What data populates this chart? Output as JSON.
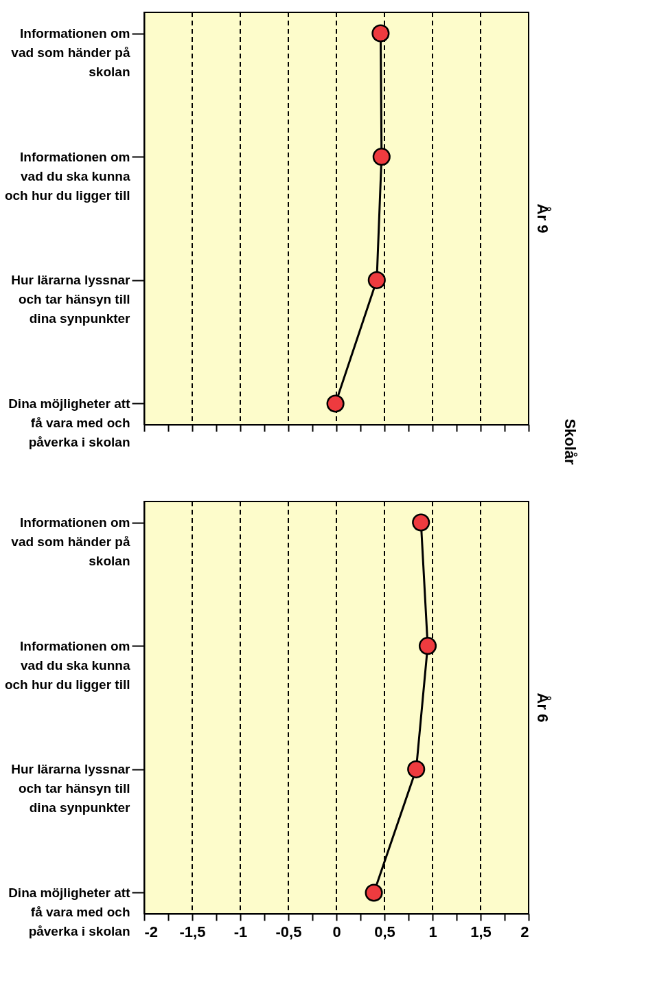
{
  "chart_data": [
    {
      "type": "line",
      "orientation": "horizontal",
      "y2label": "År 9",
      "annotations": [
        "Skolår"
      ],
      "categories": [
        "Informationen om\nvad som händer på\nskolan",
        "Informationen om\nvad du ska kunna\noch hur du ligger till",
        "Hur lärarna lyssnar\noch tar hänsyn till\ndina synpunkter",
        "Dina möjligheter att\nfå vara med och\npåverka i skolan"
      ],
      "series": [
        {
          "color": "#ee3b3f",
          "values": [
            0.46,
            0.47,
            0.42,
            -0.01
          ]
        }
      ],
      "xlim": [
        -2,
        2
      ],
      "xticks": [
        -2,
        {
          "value": -1.75,
          "label": null
        },
        -1.5,
        {
          "value": -1.25,
          "label": null
        },
        -1,
        {
          "value": -0.75,
          "label": null
        },
        -0.5,
        {
          "value": -0.25,
          "label": null
        },
        0,
        {
          "value": 0.25,
          "label": null
        },
        0.5,
        {
          "value": 0.75,
          "label": null
        },
        1,
        {
          "value": 1.25,
          "label": null
        },
        1.5,
        {
          "value": 1.75,
          "label": null
        },
        2
      ],
      "grid": "x",
      "line_style": "solid",
      "marker": "circle",
      "tick_labels": "y"
    },
    {
      "type": "line",
      "orientation": "horizontal",
      "y2label": "År 6",
      "categories": [
        "Informationen om\nvad som händer på\nskolan",
        "Informationen om\nvad du ska kunna\noch hur du ligger till",
        "Hur lärarna lyssnar\noch tar hänsyn till\ndina synpunkter",
        "Dina möjligheter att\nfå vara med och\npåverka i skolan"
      ],
      "series": [
        {
          "color": "#ee3b3f",
          "values": [
            0.88,
            0.95,
            0.83,
            0.39
          ]
        }
      ],
      "xlim": [
        -2,
        2
      ],
      "xticks": [
        -2,
        {
          "value": -1.75,
          "label": null
        },
        {
          "value": -1.5,
          "label": "-1,5"
        },
        {
          "value": -1.25,
          "label": null
        },
        -1,
        {
          "value": -0.75,
          "label": null
        },
        {
          "value": -0.5,
          "label": "-0,5"
        },
        {
          "value": -0.25,
          "label": null
        },
        0,
        {
          "value": 0.25,
          "label": null
        },
        {
          "value": 0.5,
          "label": "0,5"
        },
        {
          "value": 0.75,
          "label": null
        },
        1,
        {
          "value": 1.25,
          "label": null
        },
        {
          "value": 1.5,
          "label": "1,5"
        },
        {
          "value": 1.75,
          "label": null
        },
        2
      ],
      "grid": "x",
      "line_style": "solid",
      "marker": "circle"
    }
  ]
}
